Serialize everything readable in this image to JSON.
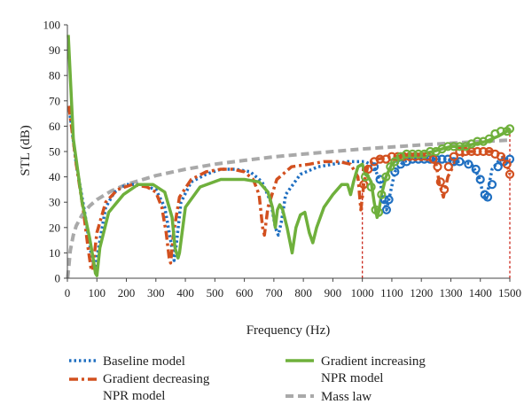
{
  "chart_data": {
    "type": "line",
    "xlabel": "Frequency (Hz)",
    "ylabel": "STL (dB)",
    "xlim": [
      0,
      1500
    ],
    "ylim": [
      0,
      100
    ],
    "x_ticks": [
      0,
      100,
      200,
      300,
      400,
      500,
      600,
      700,
      800,
      900,
      1000,
      1100,
      1200,
      1300,
      1400,
      1500
    ],
    "y_ticks": [
      0,
      10,
      20,
      30,
      40,
      50,
      60,
      70,
      80,
      90,
      100
    ],
    "grid": false,
    "legend_position": "bottom",
    "colors": {
      "baseline": "#1f6fc1",
      "decreasing": "#d2501f",
      "increasing": "#6fb03c",
      "masslaw": "#a9a9a9",
      "vline": "#cc2a1e"
    },
    "series": [
      {
        "key": "baseline",
        "name": "Baseline model",
        "style": "dotted",
        "x": [
          5,
          30,
          60,
          80,
          95,
          100,
          130,
          160,
          200,
          250,
          300,
          330,
          350,
          362,
          370,
          385,
          420,
          470,
          520,
          570,
          620,
          660,
          690,
          705,
          715,
          725,
          740,
          790,
          850,
          900,
          950,
          990,
          1010,
          1040,
          1060,
          1075,
          1082,
          1090,
          1110,
          1140,
          1170,
          1200,
          1240,
          1270,
          1290,
          1310,
          1340,
          1370,
          1395,
          1410,
          1420,
          1428,
          1440,
          1460,
          1480,
          1500
        ],
        "y": [
          68,
          45,
          25,
          10,
          3,
          8,
          28,
          34,
          37,
          37,
          35,
          28,
          15,
          7,
          14,
          30,
          38,
          41,
          43,
          43,
          42,
          38,
          30,
          20,
          17,
          22,
          33,
          41,
          44,
          45,
          46,
          46,
          46,
          44,
          38,
          30,
          27,
          31,
          42,
          46,
          47,
          47,
          47,
          47,
          47,
          46,
          46,
          45,
          40,
          33,
          31,
          36,
          43,
          46,
          47,
          47
        ]
      },
      {
        "key": "decreasing",
        "name": "Gradient decreasing NPR model",
        "style": "dashdot",
        "x": [
          5,
          30,
          55,
          70,
          80,
          85,
          100,
          130,
          170,
          220,
          270,
          300,
          320,
          335,
          345,
          350,
          360,
          380,
          420,
          470,
          520,
          560,
          600,
          630,
          650,
          662,
          668,
          680,
          710,
          760,
          820,
          870,
          920,
          960,
          985,
          995,
          1005,
          1020,
          1050,
          1100,
          1150,
          1200,
          1230,
          1250,
          1262,
          1275,
          1290,
          1320,
          1360,
          1400,
          1440,
          1470,
          1490,
          1500
        ],
        "y": [
          68,
          45,
          26,
          12,
          4,
          3,
          18,
          30,
          35,
          37,
          36,
          34,
          28,
          18,
          8,
          6,
          18,
          32,
          39,
          42,
          43,
          43,
          42,
          39,
          33,
          20,
          17,
          28,
          39,
          44,
          45,
          46,
          46,
          45,
          40,
          27,
          37,
          45,
          47,
          48,
          48,
          48,
          47,
          45,
          37,
          32,
          40,
          47,
          50,
          50,
          50,
          49,
          45,
          41
        ]
      },
      {
        "key": "increasing",
        "name": "Gradient increasing NPR model",
        "style": "solid",
        "x": [
          3,
          20,
          50,
          75,
          90,
          95,
          100,
          110,
          140,
          190,
          240,
          290,
          330,
          355,
          365,
          375,
          380,
          400,
          450,
          520,
          600,
          650,
          680,
          695,
          705,
          712,
          720,
          730,
          745,
          762,
          775,
          790,
          805,
          820,
          832,
          845,
          870,
          900,
          930,
          950,
          960,
          970,
          985,
          1000,
          1010,
          1020,
          1030,
          1040,
          1050,
          1055,
          1065,
          1080,
          1100,
          1130,
          1160,
          1200,
          1240,
          1270,
          1300,
          1340,
          1380,
          1420,
          1460,
          1490,
          1500
        ],
        "y": [
          96,
          55,
          30,
          16,
          6,
          2,
          1,
          12,
          26,
          33,
          37,
          37,
          34,
          24,
          12,
          8,
          10,
          28,
          36,
          39,
          39,
          38,
          34,
          28,
          20,
          27,
          29,
          27,
          20,
          10,
          20,
          25,
          26,
          18,
          14,
          20,
          28,
          33,
          37,
          37,
          33,
          38,
          44,
          45,
          41,
          40,
          38,
          30,
          24,
          26,
          33,
          40,
          45,
          48,
          49,
          49,
          50,
          51,
          52,
          52,
          53,
          54,
          56,
          58,
          59
        ]
      },
      {
        "key": "masslaw",
        "name": "Mass law",
        "style": "dashed",
        "x": [
          1,
          5,
          10,
          20,
          30,
          50,
          75,
          100,
          150,
          200,
          300,
          400,
          500,
          600,
          700,
          800,
          900,
          1000,
          1100,
          1200,
          1300,
          1400,
          1500
        ],
        "y": [
          0,
          5,
          11,
          17,
          20.7,
          25,
          28.5,
          31,
          34.5,
          37,
          40.5,
          43,
          45,
          46.5,
          47.9,
          49,
          50,
          51,
          51.8,
          52.6,
          53.3,
          53.9,
          54.5
        ]
      }
    ],
    "markers": [
      {
        "series": "baseline",
        "x": [
          1040,
          1060,
          1075,
          1082,
          1090,
          1110,
          1130,
          1150,
          1170,
          1190,
          1210,
          1230,
          1250,
          1270,
          1290,
          1310,
          1330,
          1360,
          1385,
          1400,
          1415,
          1425,
          1440,
          1460,
          1480,
          1500
        ],
        "y": [
          44,
          39,
          31,
          27,
          31,
          42,
          45,
          46,
          47,
          47,
          47,
          47,
          47,
          47,
          47,
          46,
          46,
          45,
          43,
          39,
          33,
          32,
          37,
          44,
          46,
          47
        ]
      },
      {
        "series": "decreasing",
        "x": [
          1005,
          1020,
          1040,
          1060,
          1080,
          1100,
          1120,
          1140,
          1160,
          1180,
          1200,
          1220,
          1240,
          1255,
          1265,
          1278,
          1292,
          1310,
          1330,
          1350,
          1370,
          1390,
          1410,
          1430,
          1450,
          1470,
          1490,
          1500
        ],
        "y": [
          37,
          43,
          46,
          47,
          47,
          48,
          48,
          48,
          48,
          48,
          48,
          48,
          47,
          44,
          38,
          35,
          44,
          48,
          50,
          50,
          50,
          50,
          50,
          50,
          49,
          48,
          45,
          41
        ]
      },
      {
        "series": "increasing",
        "x": [
          1010,
          1030,
          1045,
          1055,
          1065,
          1080,
          1095,
          1110,
          1130,
          1150,
          1170,
          1190,
          1210,
          1230,
          1250,
          1270,
          1290,
          1310,
          1330,
          1350,
          1370,
          1390,
          1410,
          1430,
          1450,
          1470,
          1490,
          1500
        ],
        "y": [
          40,
          36,
          27,
          26,
          33,
          40,
          44,
          46,
          48,
          49,
          49,
          49,
          49,
          50,
          50,
          51,
          52,
          52,
          52,
          52,
          53,
          54,
          54,
          55,
          57,
          58,
          58,
          59
        ]
      }
    ],
    "reference_lines": [
      {
        "x": 1000,
        "y_top": 46
      },
      {
        "x": 1500,
        "y_top": 59
      }
    ]
  },
  "legend": {
    "baseline_label": "Baseline model",
    "decreasing_label_line1": "Gradient decreasing",
    "decreasing_label_line2": "NPR model",
    "increasing_label_line1": "Gradient increasing",
    "increasing_label_line2": "NPR model",
    "masslaw_label": "Mass law"
  }
}
